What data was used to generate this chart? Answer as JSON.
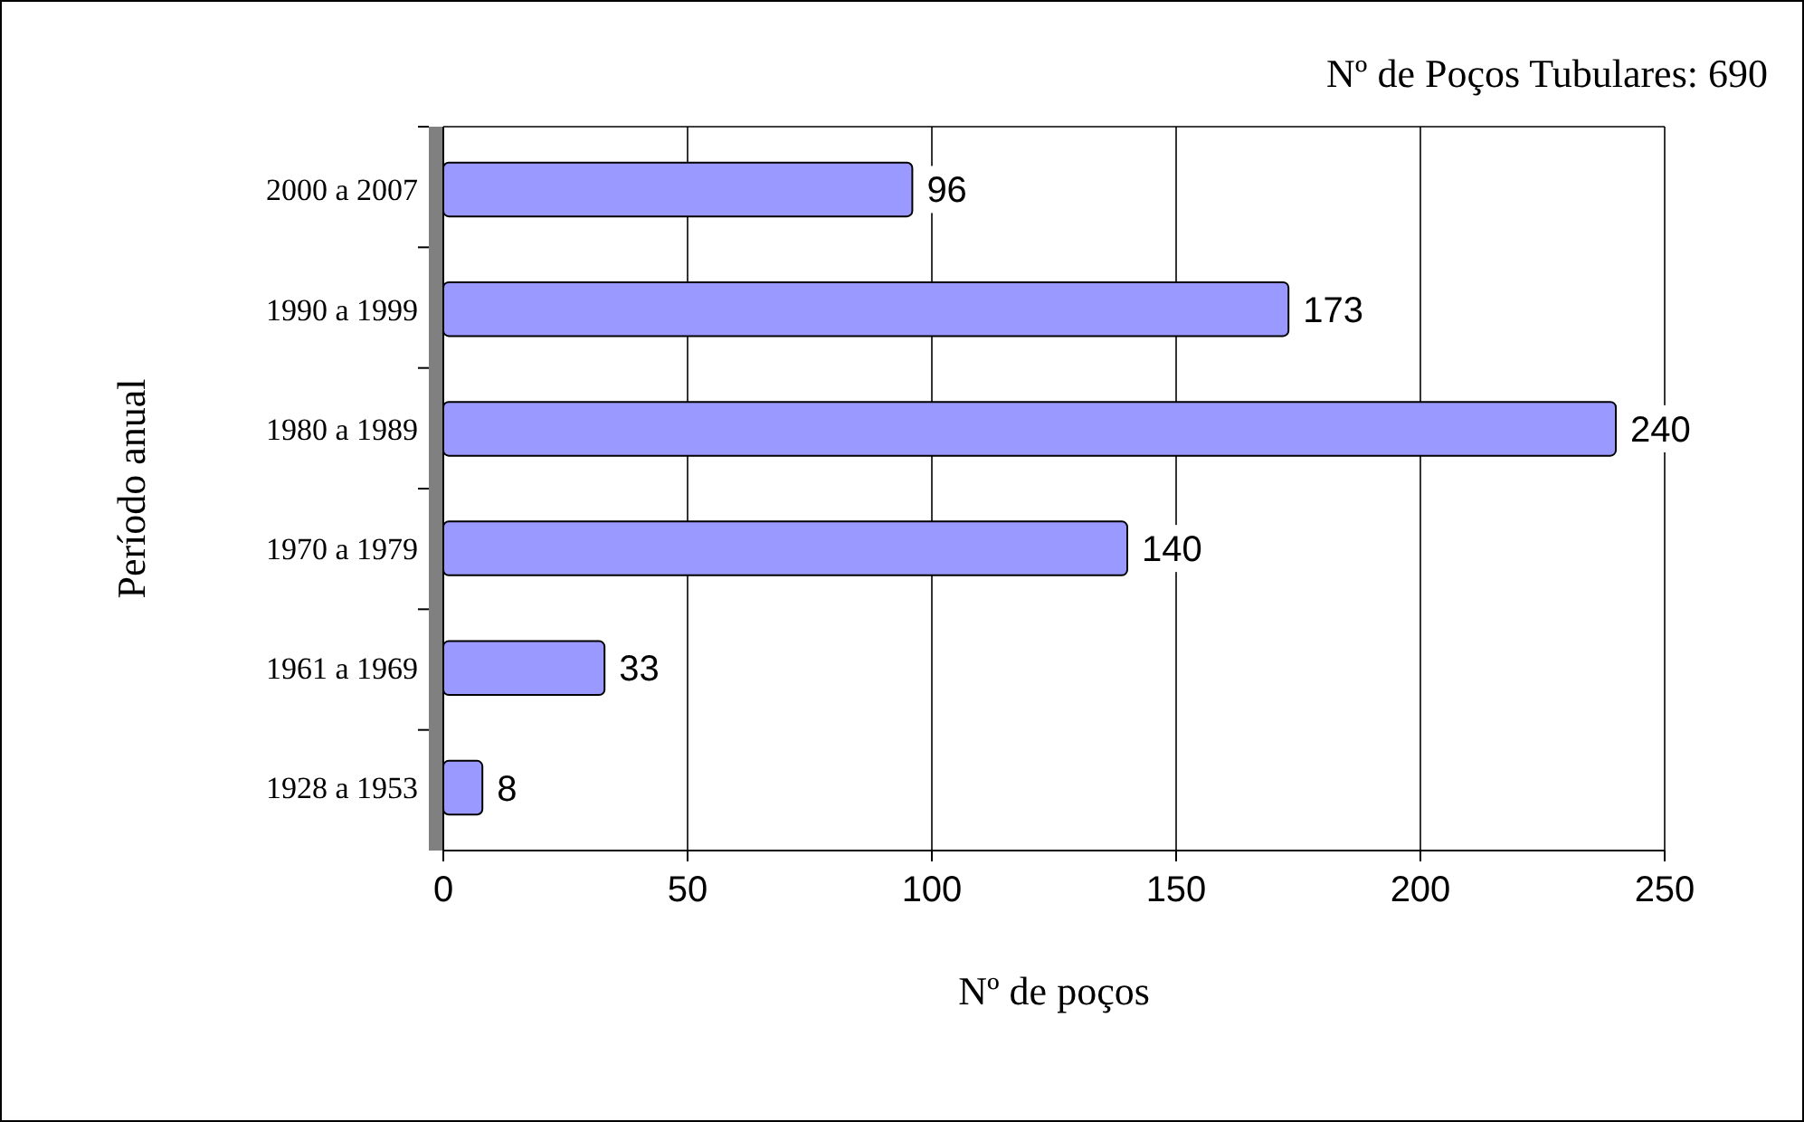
{
  "chart_data": {
    "type": "bar",
    "orientation": "horizontal",
    "xlabel": "Nº de poços",
    "ylabel": "Período anual",
    "categories": [
      "2000 a 2007",
      "1990 a 1999",
      "1980 a 1989",
      "1970 a 1979",
      "1961 a 1969",
      "1928 a 1953"
    ],
    "values": [
      96,
      173,
      240,
      140,
      33,
      8
    ],
    "color": "#9999ff",
    "xlim": [
      0,
      250
    ],
    "xticks": [
      0,
      50,
      100,
      150,
      200,
      250
    ],
    "grid": "x",
    "data_labels": true,
    "annotations": [
      "Nº de Poços Tubulares: 690"
    ]
  }
}
